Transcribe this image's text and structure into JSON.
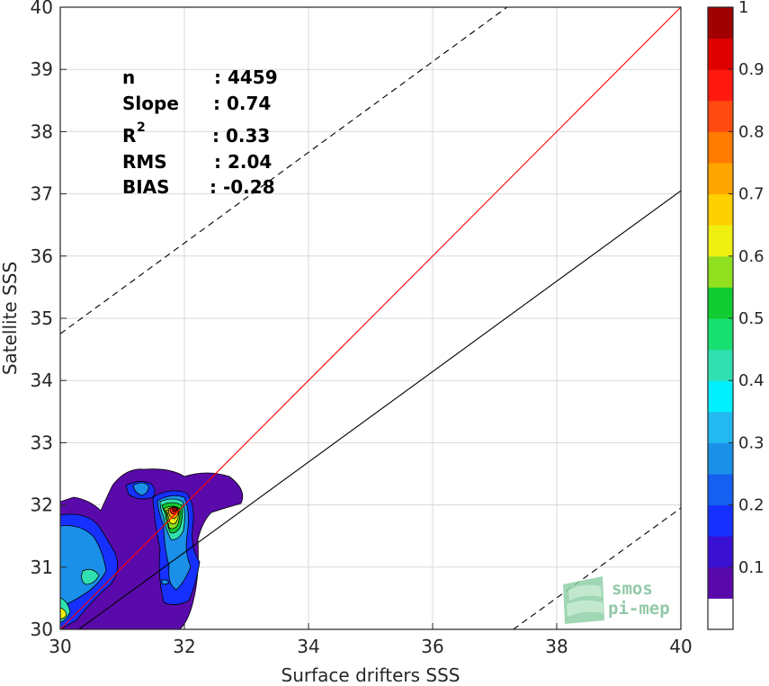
{
  "chart_data": {
    "type": "heatmap",
    "xlabel": "Surface drifters SSS",
    "ylabel": "Satellite SSS",
    "xlim": [
      30,
      40
    ],
    "ylim": [
      30,
      40
    ],
    "xticks": [
      30,
      32,
      34,
      36,
      38,
      40
    ],
    "yticks": [
      30,
      31,
      32,
      33,
      34,
      35,
      36,
      37,
      38,
      39,
      40
    ],
    "grid": true,
    "lines": [
      {
        "name": "1:1 line",
        "color": "#ff0000",
        "style": "solid",
        "points": [
          [
            30,
            30
          ],
          [
            40,
            40
          ]
        ]
      },
      {
        "name": "regression",
        "color": "#000000",
        "style": "solid",
        "points": [
          [
            30.3,
            30
          ],
          [
            40,
            37.05
          ]
        ]
      },
      {
        "name": "upper bound",
        "color": "#000000",
        "style": "dashed",
        "points": [
          [
            30,
            34.75
          ],
          [
            37.2,
            40
          ]
        ]
      },
      {
        "name": "lower bound",
        "color": "#000000",
        "style": "dashed",
        "points": [
          [
            37.3,
            30
          ],
          [
            40,
            31.95
          ]
        ]
      }
    ],
    "density_peaks": [
      {
        "x": 31.8,
        "y": 31.9,
        "value": 0.95
      },
      {
        "x": 30.1,
        "y": 30.3,
        "value": 0.55
      },
      {
        "x": 30.5,
        "y": 30.9,
        "value": 0.45
      },
      {
        "x": 31.3,
        "y": 32.3,
        "value": 0.45
      }
    ],
    "stats": {
      "n_label": "n",
      "n_value": ": 4459",
      "slope_label": "Slope",
      "slope_value": ": 0.74",
      "r2_label": "R",
      "r2_sup": "2",
      "r2_value": ": 0.33",
      "rms_label": "RMS",
      "rms_value": ": 2.04",
      "bias_label": "BIAS",
      "bias_value": ": -0.28"
    },
    "colorbar": {
      "ticks": [
        "0.1",
        "0.2",
        "0.3",
        "0.4",
        "0.5",
        "0.6",
        "0.7",
        "0.8",
        "0.9",
        "1"
      ],
      "min": 0,
      "max": 1,
      "colors": [
        "#ffffff",
        "#5a0aab",
        "#3a10d2",
        "#1530ff",
        "#1460f0",
        "#1a90e8",
        "#22b8f0",
        "#00f0ff",
        "#30e0b0",
        "#18e070",
        "#10cc30",
        "#90e020",
        "#f0f010",
        "#ffd000",
        "#ffa500",
        "#ff7a00",
        "#ff4a10",
        "#ff1a10",
        "#e00000",
        "#a00000"
      ]
    }
  },
  "logo": {
    "line1": "smos",
    "line2": "pi-mep"
  }
}
